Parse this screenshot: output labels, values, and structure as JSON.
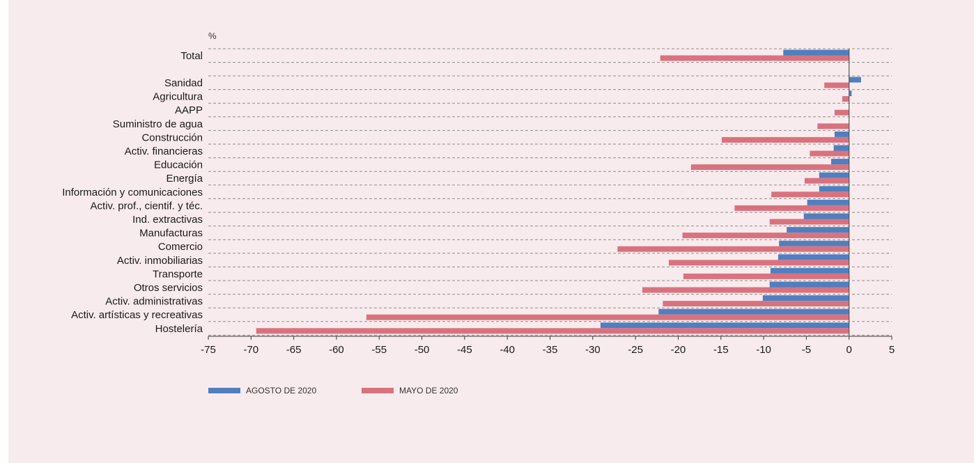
{
  "chart_data": {
    "type": "bar",
    "orientation": "horizontal",
    "unit_label": "%",
    "colors": {
      "agosto": "#4f7fbf",
      "mayo": "#d9727f",
      "background": "#f8ebed"
    },
    "xlim": [
      -75,
      5
    ],
    "xticks": [
      -75,
      -70,
      -65,
      -60,
      -55,
      -50,
      -45,
      -40,
      -35,
      -30,
      -25,
      -20,
      -15,
      -10,
      -5,
      0,
      5
    ],
    "xtick_labels": [
      "-75",
      "-70",
      "-65",
      "-60",
      "-55",
      "-50",
      "-45",
      "-40",
      "-35",
      "-30",
      "-25",
      "-20",
      "-15",
      "-10",
      "-5",
      "0",
      "5"
    ],
    "grid": true,
    "legend_position": "bottom-left",
    "categories": [
      "Total",
      "Sanidad",
      "Agricultura",
      "AAPP",
      "Suministro de agua",
      "Construcción",
      "Activ. financieras",
      "Educación",
      "Energía",
      "Información y comunicaciones",
      "Activ. prof., cientif. y téc.",
      "Ind. extractivas",
      "Manufacturas",
      "Comercio",
      "Activ. inmobiliarias",
      "Transporte",
      "Otros servicios",
      "Activ. administrativas",
      "Activ. artísticas y recreativas",
      "Hostelería"
    ],
    "series": [
      {
        "name": "AGOSTO DE 2020",
        "values": [
          -7.7,
          1.4,
          0.3,
          0,
          0,
          -1.7,
          -1.8,
          -2.1,
          -3.5,
          -3.5,
          -4.9,
          -5.3,
          -7.3,
          -8.2,
          -8.3,
          -9.2,
          -9.3,
          -10.1,
          -22.3,
          -29.1
        ]
      },
      {
        "name": "MAYO DE 2020",
        "values": [
          -22.1,
          -2.9,
          -0.8,
          -1.7,
          -3.7,
          -14.9,
          -4.6,
          -18.5,
          -5.2,
          -9.1,
          -13.4,
          -9.3,
          -19.5,
          -27.1,
          -21.1,
          -19.4,
          -24.2,
          -21.8,
          -56.5,
          -69.4
        ]
      }
    ]
  }
}
